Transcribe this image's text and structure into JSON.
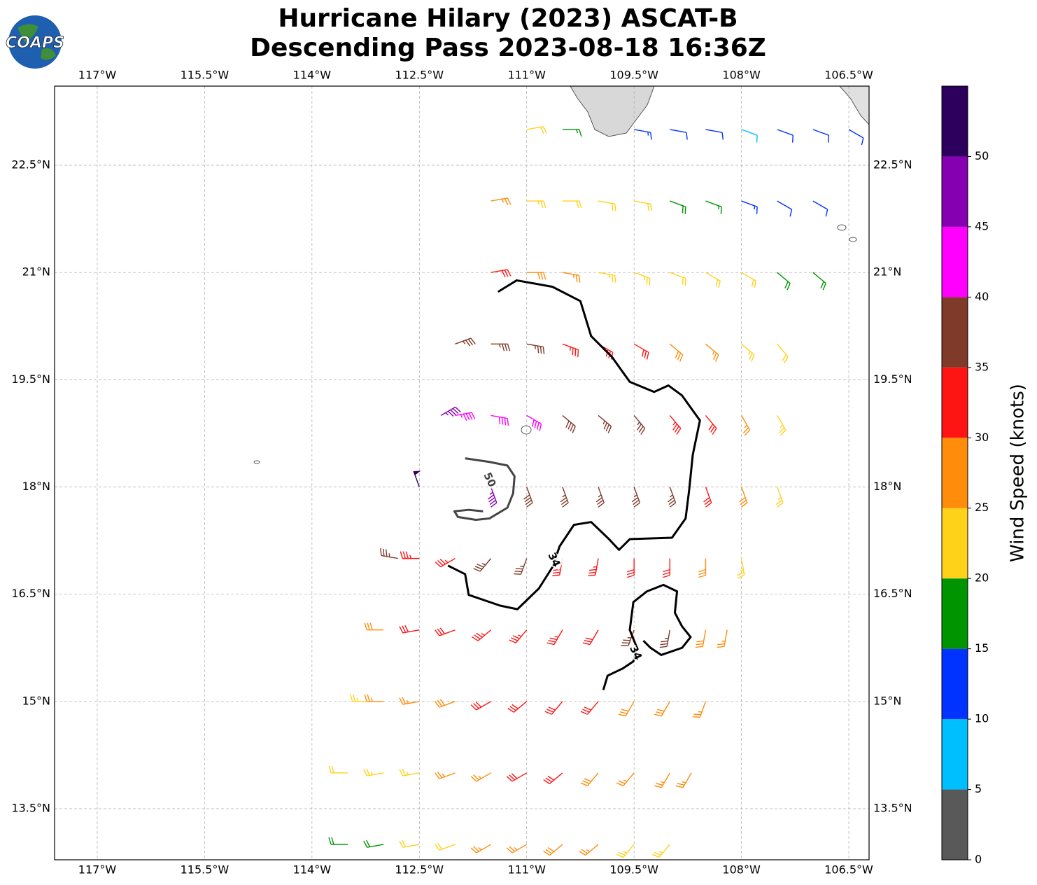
{
  "logo": "COAPS",
  "title": [
    "Hurricane Hilary (2023) ASCAT-B",
    "Descending Pass 2023-08-18 16:36Z"
  ],
  "map": {
    "xlim": [
      -117.596,
      -106.217
    ],
    "ylim": [
      12.785,
      23.607
    ],
    "grid": true,
    "xticks": [
      {
        "value": -117,
        "label": "117°W"
      },
      {
        "value": -115.5,
        "label": "115.5°W"
      },
      {
        "value": -114,
        "label": "114°W"
      },
      {
        "value": -112.5,
        "label": "112.5°W"
      },
      {
        "value": -111,
        "label": "111°W"
      },
      {
        "value": -109.5,
        "label": "109.5°W"
      },
      {
        "value": -108,
        "label": "108°W"
      },
      {
        "value": -106.5,
        "label": "106.5°W"
      }
    ],
    "yticks": [
      {
        "value": 13.5,
        "label": "13.5°N"
      },
      {
        "value": 15,
        "label": "15°N"
      },
      {
        "value": 16.5,
        "label": "16.5°N"
      },
      {
        "value": 18,
        "label": "18°N"
      },
      {
        "value": 19.5,
        "label": "19.5°N"
      },
      {
        "value": 21,
        "label": "21°N"
      },
      {
        "value": 22.5,
        "label": "22.5°N"
      }
    ],
    "wind_barbs": {
      "lon": [
        -111,
        -110.5,
        -109.5,
        -109,
        -108.5,
        -108,
        -107.5,
        -107,
        -106.5,
        -111.5,
        -111,
        -110.5,
        -110,
        -109.5,
        -109,
        -108.5,
        -108,
        -107.5,
        -107,
        -111.5,
        -111,
        -110.5,
        -110,
        -109.5,
        -109,
        -108.5,
        -108,
        -107.5,
        -107,
        -112,
        -111.5,
        -111,
        -110.5,
        -110,
        -109.5,
        -109,
        -108.5,
        -108,
        -107.5,
        -112.2,
        -112,
        -111.5,
        -111,
        -110.5,
        -110,
        -109.5,
        -109,
        -108.5,
        -108,
        -107.5,
        -112.5,
        -111.5,
        -111,
        -110.5,
        -110,
        -109.5,
        -109,
        -108.5,
        -108,
        -107.5,
        -112.8,
        -112.5,
        -112,
        -111.5,
        -111,
        -110.5,
        -110,
        -109.5,
        -109,
        -108.5,
        -108,
        -113,
        -112.5,
        -112,
        -111.5,
        -111,
        -110.5,
        -110,
        -109.5,
        -109,
        -108.5,
        -108.2,
        -113.2,
        -113,
        -112.5,
        -112,
        -111.5,
        -111,
        -110.5,
        -110,
        -109.5,
        -109,
        -108.5,
        -113.5,
        -113,
        -112.5,
        -112,
        -111.5,
        -111,
        -110.5,
        -110,
        -109.5,
        -109,
        -108.7,
        -113.5,
        -113,
        -112.5,
        -112,
        -111.5,
        -111,
        -110.5,
        -110,
        -109.5,
        -109
      ],
      "lat": [
        23,
        23,
        23,
        23,
        23,
        23,
        23,
        23,
        23,
        22,
        22,
        22,
        22,
        22,
        22,
        22,
        22,
        22,
        22,
        21,
        21,
        21,
        21,
        21,
        21,
        21,
        21,
        21,
        21,
        20,
        20,
        20,
        20,
        20,
        20,
        20,
        20,
        20,
        20,
        19,
        19,
        19,
        19,
        19,
        19,
        19,
        19,
        19,
        19,
        19,
        18,
        18,
        18,
        18,
        18,
        18,
        18,
        18,
        18,
        18,
        17,
        17,
        17,
        17,
        17,
        17,
        17,
        17,
        17,
        17,
        17,
        16,
        16,
        16,
        16,
        16,
        16,
        16,
        16,
        16,
        16,
        16,
        15,
        15,
        15,
        15,
        15,
        15,
        15,
        15,
        15,
        15,
        15,
        14,
        14,
        14,
        14,
        14,
        14,
        14,
        14,
        14,
        14,
        14,
        13,
        13,
        13,
        13,
        13,
        13,
        13,
        13,
        13,
        13
      ],
      "speed": [
        22,
        17,
        13,
        12,
        12,
        9,
        12,
        12,
        11,
        26,
        23,
        22,
        22,
        20,
        19,
        17,
        14,
        12,
        12,
        31,
        29,
        27,
        24,
        23,
        22,
        22,
        21,
        18,
        18,
        37,
        37,
        36,
        34,
        32,
        31,
        28,
        25,
        24,
        22,
        46,
        43,
        42,
        40,
        38,
        37,
        36,
        34,
        30,
        27,
        23,
        52,
        47,
        38,
        37,
        37,
        36,
        35,
        31,
        28,
        24,
        36,
        33,
        34,
        37,
        36,
        32,
        33,
        32,
        31,
        28,
        23,
        28,
        30,
        32,
        33,
        33,
        33,
        32,
        35,
        36,
        28,
        26,
        23,
        26,
        27,
        28,
        31,
        31,
        32,
        31,
        29,
        28,
        27,
        22,
        23,
        24,
        26,
        27,
        31,
        31,
        29,
        27,
        26,
        25,
        18,
        19,
        21,
        22,
        26,
        27,
        28,
        27,
        24,
        23
      ],
      "direction": [
        80,
        90,
        100,
        100,
        100,
        110,
        110,
        110,
        120,
        80,
        90,
        90,
        100,
        100,
        110,
        110,
        110,
        120,
        120,
        80,
        90,
        100,
        100,
        110,
        110,
        120,
        120,
        130,
        130,
        70,
        90,
        100,
        110,
        120,
        120,
        130,
        130,
        130,
        140,
        60,
        80,
        100,
        120,
        130,
        130,
        140,
        140,
        140,
        150,
        150,
        340,
        160,
        160,
        160,
        160,
        160,
        160,
        160,
        160,
        160,
        280,
        270,
        240,
        220,
        200,
        190,
        190,
        180,
        180,
        180,
        170,
        270,
        260,
        250,
        230,
        220,
        210,
        210,
        200,
        190,
        190,
        190,
        270,
        270,
        260,
        250,
        240,
        230,
        220,
        220,
        210,
        210,
        200,
        270,
        260,
        260,
        250,
        240,
        240,
        230,
        220,
        220,
        210,
        210,
        270,
        260,
        260,
        250,
        240,
        240,
        230,
        230,
        220,
        220
      ]
    },
    "contours": [
      {
        "level": 34,
        "color": "#000000",
        "label_at": [
          -110.62,
          16.98
        ],
        "lon": [
          -111.4,
          -111.14,
          -110.64,
          -110.25,
          -110.1,
          -109.81,
          -109.56,
          -109.22,
          -109.02,
          -108.83,
          -108.58,
          -108.68,
          -108.73,
          -108.78,
          -108.97,
          -109.56,
          -109.71,
          -109.85,
          -110.1,
          -110.34,
          -110.54,
          -110.64,
          -110.83,
          -111.13,
          -111.37,
          -111.81,
          -111.86,
          -112.1
        ],
        "lat": [
          20.73,
          20.89,
          20.8,
          20.6,
          20.11,
          19.82,
          19.47,
          19.33,
          19.42,
          19.28,
          18.93,
          18.45,
          17.96,
          17.56,
          17.29,
          17.27,
          17.12,
          17.27,
          17.51,
          17.47,
          17.17,
          16.88,
          16.58,
          16.29,
          16.34,
          16.49,
          16.78,
          16.9
        ]
      },
      {
        "level": 34,
        "color": "#000000",
        "label_at": [
          -109.48,
          15.68
        ],
        "lon": [
          -109.93,
          -109.87,
          -109.66,
          -109.51,
          -109.46,
          -109.56,
          -109.51,
          -109.32,
          -109.09,
          -108.9,
          -108.93,
          -108.83,
          -108.71,
          -108.83,
          -109.12,
          -109.27,
          -109.37
        ],
        "lat": [
          15.16,
          15.36,
          15.46,
          15.56,
          15.75,
          16.0,
          16.39,
          16.54,
          16.63,
          16.54,
          16.24,
          16.05,
          15.9,
          15.75,
          15.65,
          15.75,
          15.85
        ]
      },
      {
        "level": 50,
        "color": "#444444",
        "label_at": [
          -111.52,
          18.1
        ],
        "lon": [
          -111.86,
          -111.52,
          -111.27,
          -111.17,
          -111.19,
          -111.27,
          -111.52,
          -111.71,
          -111.96,
          -112.01,
          -111.81,
          -111.61
        ],
        "lat": [
          18.4,
          18.35,
          18.3,
          18.15,
          17.91,
          17.71,
          17.56,
          17.54,
          17.58,
          17.66,
          17.68,
          17.66
        ]
      }
    ]
  },
  "colorbar": {
    "label": "Wind Speed (knots)",
    "levels": [
      0,
      5,
      10,
      15,
      20,
      25,
      30,
      35,
      40,
      45,
      50,
      55
    ],
    "colors": [
      "#595959",
      "#00bfff",
      "#0033ff",
      "#009400",
      "#ffd21a",
      "#ff8c0a",
      "#ff1414",
      "#7f3a2a",
      "#ff00ff",
      "#8400b0",
      "#2c005c"
    ],
    "ticks": [
      0,
      5,
      10,
      15,
      20,
      25,
      30,
      35,
      40,
      45,
      50
    ]
  }
}
